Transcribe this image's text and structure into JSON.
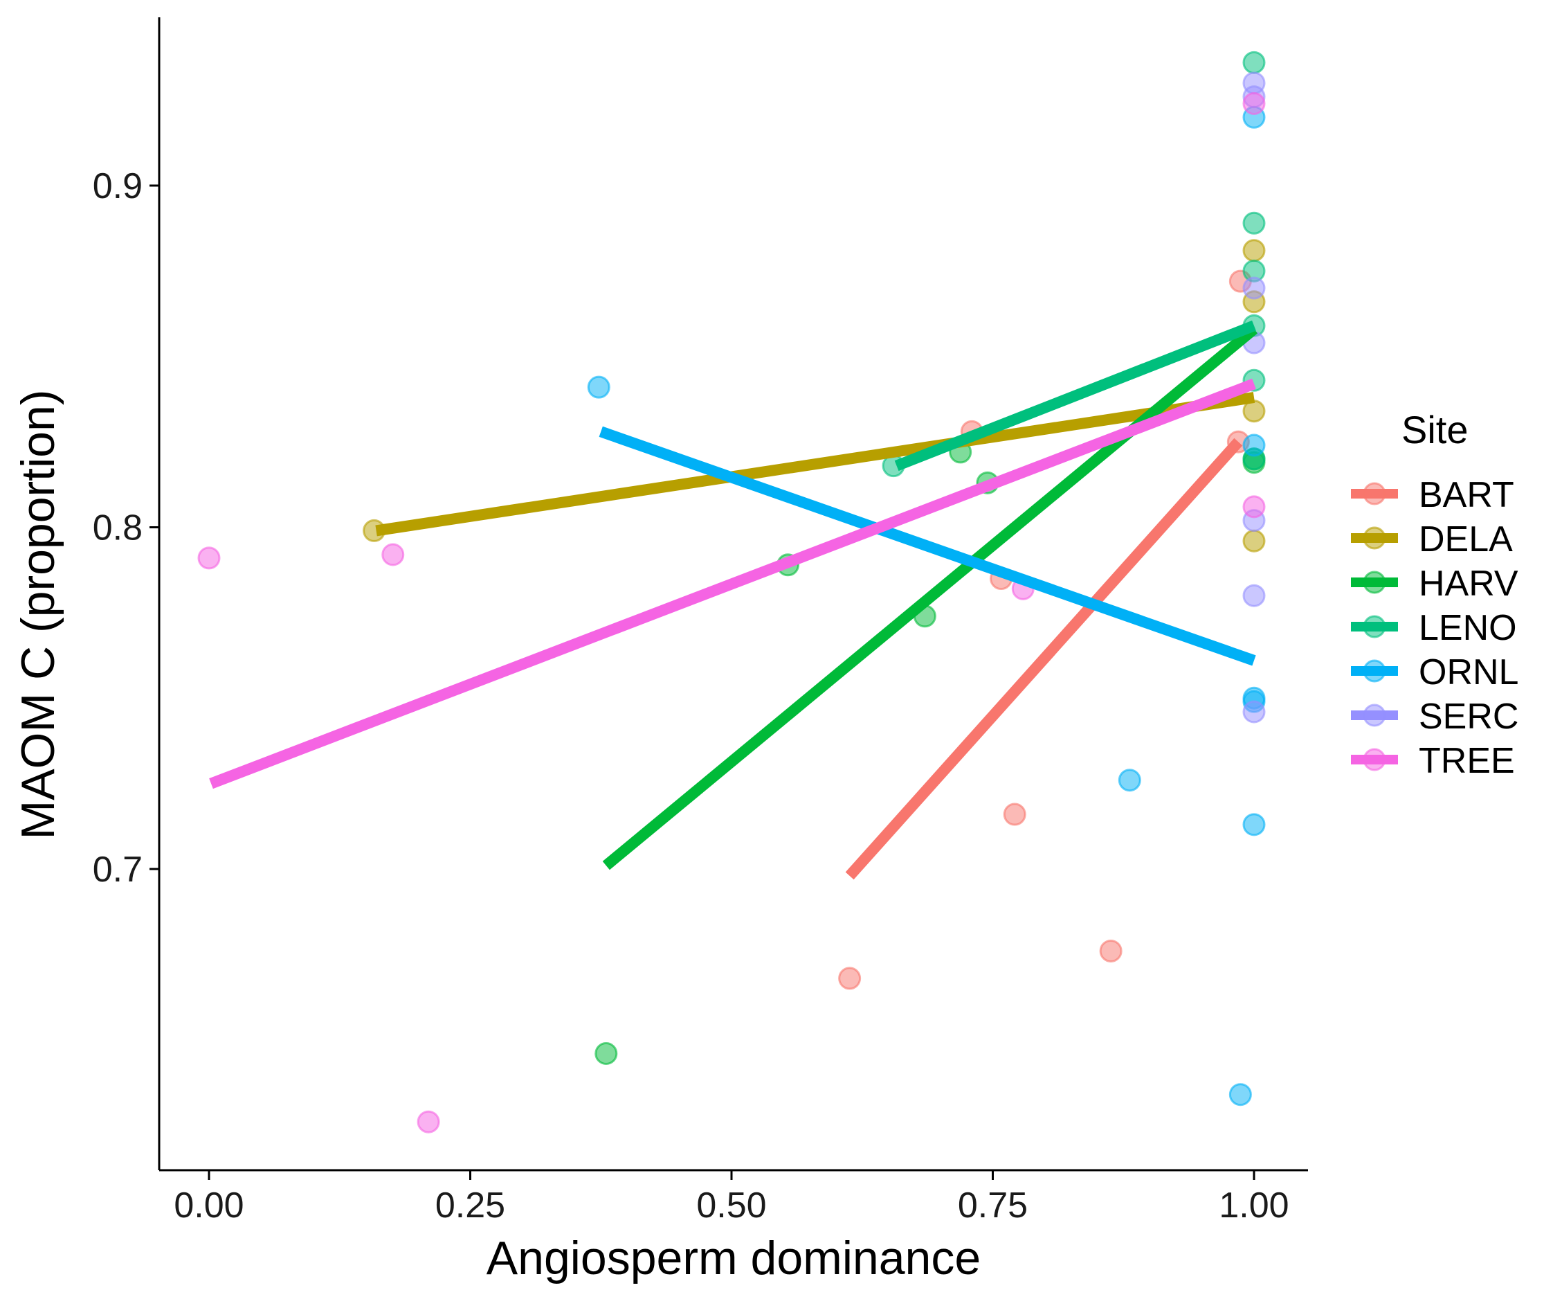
{
  "chart_data": {
    "type": "scatter",
    "xlabel": "Angiosperm dominance",
    "ylabel": "MAOM C (proportion)",
    "xlim": [
      -0.012,
      2.6
    ],
    "ylim": [
      0.613,
      0.951
    ],
    "x_ticks": [
      {
        "value": 0.0,
        "label": "0.00"
      },
      {
        "value": 0.25,
        "label": "0.25"
      },
      {
        "value": 0.5,
        "label": "0.50"
      },
      {
        "value": 0.75,
        "label": "0.75"
      },
      {
        "value": 1.0,
        "label": "1.00"
      }
    ],
    "y_ticks": [
      {
        "value": 0.7,
        "label": "0.7"
      },
      {
        "value": 0.8,
        "label": "0.8"
      },
      {
        "value": 0.9,
        "label": "0.9"
      }
    ],
    "grid": false,
    "legend": {
      "title": "Site",
      "position": "right"
    },
    "series": [
      {
        "name": "BART",
        "color": "#F8766D",
        "points": [
          [
            0.613,
            0.668
          ],
          [
            0.73,
            0.828
          ],
          [
            0.758,
            0.785
          ],
          [
            0.771,
            0.716
          ],
          [
            0.863,
            0.676
          ],
          [
            0.985,
            0.825
          ],
          [
            0.987,
            0.872
          ]
        ],
        "fit": [
          [
            0.613,
            0.698
          ],
          [
            0.985,
            0.825
          ]
        ]
      },
      {
        "name": "DELA",
        "color": "#B79F00",
        "points": [
          [
            0.158,
            0.799
          ],
          [
            1.0,
            0.796
          ],
          [
            1.0,
            0.834
          ],
          [
            1.0,
            0.866
          ],
          [
            1.0,
            0.881
          ]
        ],
        "fit": [
          [
            0.16,
            0.799
          ],
          [
            1.0,
            0.838
          ]
        ]
      },
      {
        "name": "HARV",
        "color": "#00BA38",
        "points": [
          [
            0.38,
            0.646
          ],
          [
            0.554,
            0.789
          ],
          [
            0.685,
            0.774
          ],
          [
            0.719,
            0.822
          ],
          [
            0.745,
            0.813
          ],
          [
            1.0,
            0.819
          ],
          [
            1.0,
            0.82
          ]
        ],
        "fit": [
          [
            0.38,
            0.701
          ],
          [
            1.0,
            0.858
          ]
        ]
      },
      {
        "name": "LENO",
        "color": "#00BF7D",
        "points": [
          [
            0.655,
            0.818
          ],
          [
            1.0,
            0.936
          ],
          [
            1.0,
            0.889
          ],
          [
            1.0,
            0.875
          ],
          [
            1.0,
            0.859
          ],
          [
            1.0,
            0.843
          ],
          [
            1.0,
            0.82
          ]
        ],
        "fit": [
          [
            0.658,
            0.818
          ],
          [
            1.0,
            0.859
          ]
        ]
      },
      {
        "name": "ORNL",
        "color": "#00B0F6",
        "points": [
          [
            0.373,
            0.841
          ],
          [
            0.881,
            0.726
          ],
          [
            0.987,
            0.634
          ],
          [
            1.0,
            0.92
          ],
          [
            1.0,
            0.824
          ],
          [
            1.0,
            0.75
          ],
          [
            1.0,
            0.749
          ],
          [
            1.0,
            0.713
          ]
        ],
        "fit": [
          [
            0.375,
            0.828
          ],
          [
            1.0,
            0.761
          ]
        ]
      },
      {
        "name": "SERC",
        "color": "#9590FF",
        "points": [
          [
            1.0,
            0.93
          ],
          [
            1.0,
            0.926
          ],
          [
            1.0,
            0.87
          ],
          [
            1.0,
            0.854
          ],
          [
            1.0,
            0.802
          ],
          [
            1.0,
            0.78
          ],
          [
            1.0,
            0.746
          ]
        ],
        "fit": []
      },
      {
        "name": "TREE",
        "color": "#F564E3",
        "points": [
          [
            0.0,
            0.791
          ],
          [
            0.176,
            0.792
          ],
          [
            0.21,
            0.626
          ],
          [
            0.779,
            0.782
          ],
          [
            1.0,
            0.924
          ],
          [
            1.0,
            0.806
          ]
        ],
        "fit": [
          [
            0.002,
            0.725
          ],
          [
            1.0,
            0.842
          ]
        ]
      }
    ]
  }
}
